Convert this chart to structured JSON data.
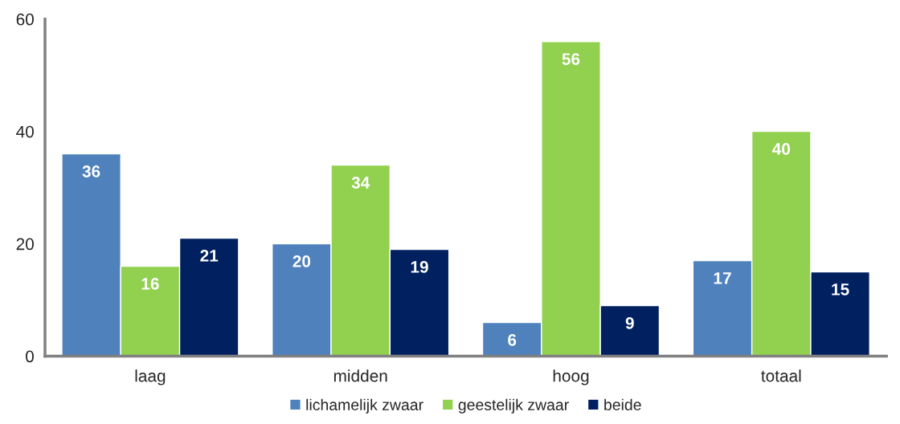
{
  "chart_data": {
    "type": "bar",
    "categories": [
      "laag",
      "midden",
      "hoog",
      "totaal"
    ],
    "series": [
      {
        "name": "lichamelijk zwaar",
        "color": "#4f81bd",
        "values": [
          36,
          20,
          6,
          17
        ]
      },
      {
        "name": "geestelijk zwaar",
        "color": "#92d050",
        "values": [
          16,
          34,
          56,
          40
        ]
      },
      {
        "name": "beide",
        "color": "#002060",
        "values": [
          21,
          19,
          9,
          15
        ]
      }
    ],
    "ylim": [
      0,
      60
    ],
    "yticks": [
      0,
      20,
      40,
      60
    ],
    "grid": false,
    "legend": "bottom",
    "data_labels": true
  }
}
